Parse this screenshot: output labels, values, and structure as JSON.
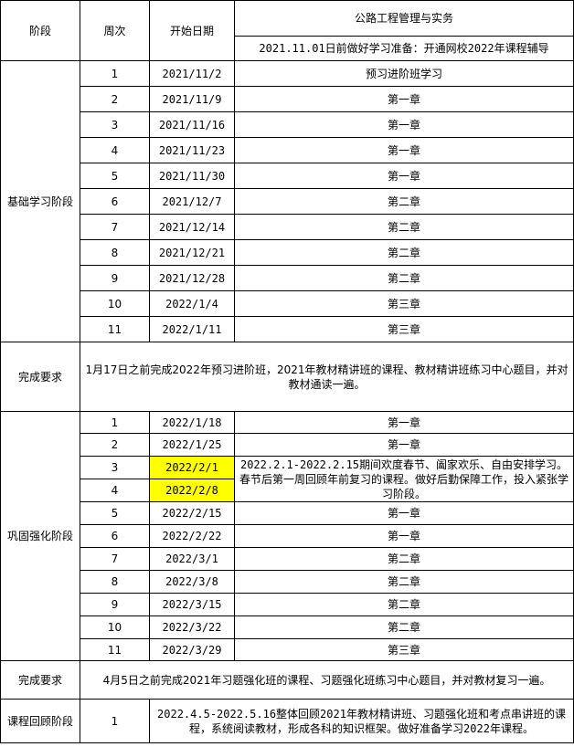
{
  "header": {
    "stage": "阶段",
    "week": "周次",
    "start_date": "开始日期",
    "subject": "公路工程管理与实务",
    "prep_note": "2021.11.01日前做好学习准备：开通网校2022年课程辅导"
  },
  "basic": {
    "stage": "基础学习阶段",
    "rows": [
      {
        "week": "1",
        "date": "2021/11/2",
        "content": "预习进阶班学习"
      },
      {
        "week": "2",
        "date": "2021/11/9",
        "content": "第一章"
      },
      {
        "week": "3",
        "date": "2021/11/16",
        "content": "第一章"
      },
      {
        "week": "4",
        "date": "2021/11/23",
        "content": "第一章"
      },
      {
        "week": "5",
        "date": "2021/11/30",
        "content": "第一章"
      },
      {
        "week": "6",
        "date": "2021/12/7",
        "content": "第二章"
      },
      {
        "week": "7",
        "date": "2021/12/14",
        "content": "第二章"
      },
      {
        "week": "8",
        "date": "2021/12/21",
        "content": "第二章"
      },
      {
        "week": "9",
        "date": "2021/12/28",
        "content": "第二章"
      },
      {
        "week": "10",
        "date": "2022/1/4",
        "content": "第三章"
      },
      {
        "week": "11",
        "date": "2022/1/11",
        "content": "第三章"
      }
    ],
    "requirement_label": "完成要求",
    "requirement": "1月17日之前完成2022年预习进阶班，2021年教材精讲班的课程、教材精讲班练习中心题目，并对教材通读一遍。"
  },
  "consolidate": {
    "stage": "巩固强化阶段",
    "rows": [
      {
        "week": "1",
        "date": "2022/1/18",
        "content": "第一章"
      },
      {
        "week": "2",
        "date": "2022/1/25",
        "content": "第一章"
      },
      {
        "week": "3",
        "date": "2022/2/1",
        "content": "2022.2.1-2022.2.15期间欢度春节、阖家欢乐、自由安排学习。春节后第一周回顾年前复习的课程。做好后勤保障工作，投入紧张学习阶段。"
      },
      {
        "week": "4",
        "date": "2022/2/8"
      },
      {
        "week": "5",
        "date": "2022/2/15",
        "content": "第一章"
      },
      {
        "week": "6",
        "date": "2022/2/22",
        "content": "第一章"
      },
      {
        "week": "7",
        "date": "2022/3/1",
        "content": "第二章"
      },
      {
        "week": "8",
        "date": "2022/3/8",
        "content": "第二章"
      },
      {
        "week": "9",
        "date": "2022/3/15",
        "content": "第二章"
      },
      {
        "week": "10",
        "date": "2022/3/22",
        "content": "第二章"
      },
      {
        "week": "11",
        "date": "2022/3/29",
        "content": "第三章"
      }
    ],
    "requirement_label": "完成要求",
    "requirement": "4月5日之前完成2021年习题强化班的课程、习题强化班练习中心题目，并对教材复习一遍。"
  },
  "review": {
    "stage": "课程回顾阶段",
    "week": "1",
    "content": "2022.4.5-2022.5.16整体回顾2021年教材精讲班、习题强化班和考点串讲班的课程，系统阅读教材，形成各科的知识框架。做好准备学习2022年课程。"
  },
  "colors": {
    "highlight": "#ffff00",
    "border": "#000000"
  }
}
